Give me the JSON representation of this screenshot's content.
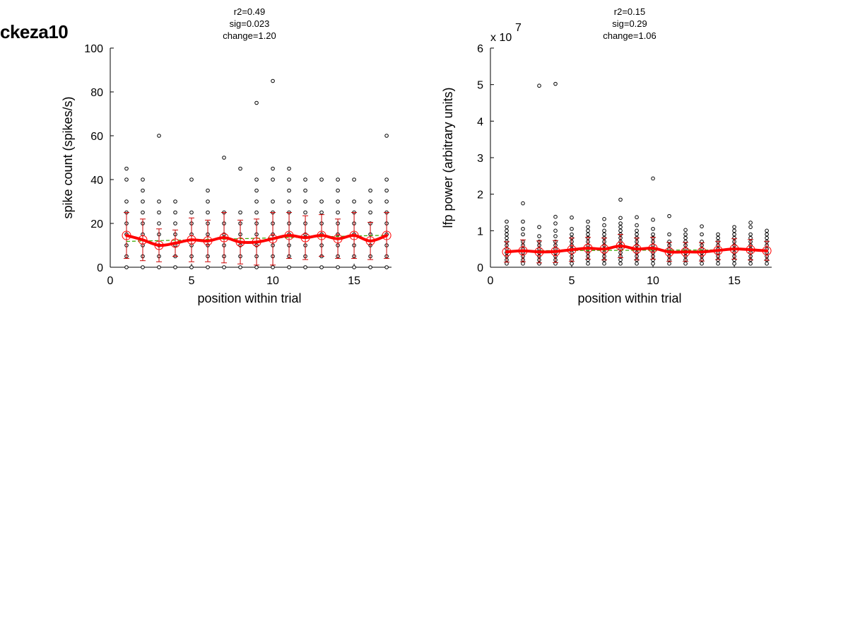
{
  "figure": {
    "title": "ckeza10"
  },
  "chart_data": [
    {
      "type": "scatter",
      "xlabel": "position within trial",
      "ylabel": "spike count (spikes/s)",
      "stats": [
        "r2=0.49",
        "sig=0.023",
        "change=1.20"
      ],
      "xlim": [
        0,
        17.3
      ],
      "ylim": [
        0,
        100
      ],
      "xticks": [
        0,
        5,
        10,
        15
      ],
      "yticks": [
        0,
        20,
        40,
        60,
        80,
        100
      ],
      "exponent_label": "",
      "raw_points": [
        {
          "x": 1,
          "y": [
            0,
            5,
            10,
            15,
            20,
            25,
            30,
            40,
            45
          ]
        },
        {
          "x": 2,
          "y": [
            0,
            5,
            10,
            15,
            20,
            25,
            30,
            35,
            40
          ]
        },
        {
          "x": 3,
          "y": [
            0,
            5,
            10,
            15,
            20,
            25,
            30,
            60
          ]
        },
        {
          "x": 4,
          "y": [
            0,
            5,
            10,
            15,
            20,
            25,
            30
          ]
        },
        {
          "x": 5,
          "y": [
            0,
            5,
            10,
            15,
            20,
            25,
            40
          ]
        },
        {
          "x": 6,
          "y": [
            0,
            5,
            10,
            15,
            20,
            25,
            30,
            35
          ]
        },
        {
          "x": 7,
          "y": [
            0,
            5,
            10,
            15,
            20,
            25,
            50
          ]
        },
        {
          "x": 8,
          "y": [
            0,
            5,
            10,
            15,
            20,
            25,
            45
          ]
        },
        {
          "x": 9,
          "y": [
            0,
            5,
            10,
            15,
            20,
            25,
            30,
            35,
            40,
            75
          ]
        },
        {
          "x": 10,
          "y": [
            0,
            5,
            10,
            15,
            20,
            25,
            30,
            40,
            45,
            85
          ]
        },
        {
          "x": 11,
          "y": [
            0,
            5,
            10,
            15,
            20,
            25,
            30,
            35,
            40,
            45
          ]
        },
        {
          "x": 12,
          "y": [
            0,
            5,
            10,
            15,
            20,
            25,
            30,
            35,
            40
          ]
        },
        {
          "x": 13,
          "y": [
            0,
            5,
            10,
            15,
            20,
            25,
            30,
            40
          ]
        },
        {
          "x": 14,
          "y": [
            0,
            5,
            10,
            15,
            20,
            25,
            30,
            35,
            40
          ]
        },
        {
          "x": 15,
          "y": [
            0,
            5,
            10,
            15,
            20,
            25,
            30,
            40
          ]
        },
        {
          "x": 16,
          "y": [
            0,
            5,
            10,
            15,
            20,
            25,
            30,
            35
          ]
        },
        {
          "x": 17,
          "y": [
            0,
            5,
            10,
            15,
            20,
            25,
            30,
            35,
            40,
            60
          ]
        }
      ],
      "means": [
        14.5,
        12.5,
        10.0,
        11.0,
        12.5,
        12.0,
        13.5,
        11.5,
        11.5,
        13.0,
        14.5,
        13.5,
        14.5,
        13.0,
        14.5,
        12.0,
        14.5
      ],
      "errors": [
        10.5,
        9.5,
        7.5,
        6.0,
        10.0,
        9.5,
        11.5,
        10.0,
        10.5,
        12.0,
        10.5,
        10.0,
        9.5,
        9.0,
        10.5,
        8.5,
        10.5
      ],
      "fit_line": {
        "x": [
          1,
          17
        ],
        "y": [
          11.8,
          14.6
        ]
      },
      "colors": {
        "points": "#000000",
        "mean": "#ff0000",
        "errorbar": "#cc0000",
        "fit": "#33aa00"
      }
    },
    {
      "type": "scatter",
      "xlabel": "position within trial",
      "ylabel": "lfp power (arbitrary units)",
      "stats": [
        "r2=0.15",
        "sig=0.29",
        "change=1.06"
      ],
      "xlim": [
        0,
        17.3
      ],
      "ylim": [
        0,
        6
      ],
      "xticks": [
        0,
        5,
        10,
        15
      ],
      "yticks": [
        0,
        1,
        2,
        3,
        4,
        5,
        6
      ],
      "exponent_label": "x 10",
      "exponent_power": "7",
      "raw_points": [
        {
          "x": 1,
          "y": [
            0.1,
            0.2,
            0.3,
            0.4,
            0.5,
            0.6,
            0.7,
            0.8,
            0.9,
            1.0,
            1.1,
            1.25
          ]
        },
        {
          "x": 2,
          "y": [
            0.1,
            0.2,
            0.3,
            0.4,
            0.5,
            0.6,
            0.7,
            0.9,
            1.05,
            1.25,
            1.75
          ]
        },
        {
          "x": 3,
          "y": [
            0.1,
            0.2,
            0.3,
            0.4,
            0.5,
            0.6,
            0.7,
            0.85,
            1.1,
            4.97
          ]
        },
        {
          "x": 4,
          "y": [
            0.1,
            0.2,
            0.3,
            0.4,
            0.5,
            0.6,
            0.7,
            0.85,
            1.0,
            1.2,
            1.38,
            5.02
          ]
        },
        {
          "x": 5,
          "y": [
            0.1,
            0.2,
            0.3,
            0.4,
            0.5,
            0.6,
            0.7,
            0.8,
            0.9,
            1.05,
            1.36
          ]
        },
        {
          "x": 6,
          "y": [
            0.1,
            0.2,
            0.3,
            0.4,
            0.5,
            0.6,
            0.7,
            0.8,
            0.9,
            1.0,
            1.1,
            1.25
          ]
        },
        {
          "x": 7,
          "y": [
            0.1,
            0.2,
            0.3,
            0.4,
            0.5,
            0.6,
            0.7,
            0.8,
            0.9,
            1.0,
            1.15,
            1.32
          ]
        },
        {
          "x": 8,
          "y": [
            0.1,
            0.2,
            0.3,
            0.4,
            0.5,
            0.6,
            0.7,
            0.8,
            0.9,
            1.0,
            1.1,
            1.2,
            1.35,
            1.85
          ]
        },
        {
          "x": 9,
          "y": [
            0.1,
            0.2,
            0.3,
            0.4,
            0.5,
            0.6,
            0.7,
            0.8,
            0.9,
            1.0,
            1.15,
            1.37
          ]
        },
        {
          "x": 10,
          "y": [
            0.1,
            0.2,
            0.3,
            0.4,
            0.5,
            0.6,
            0.7,
            0.8,
            0.9,
            1.05,
            1.3,
            2.43
          ]
        },
        {
          "x": 11,
          "y": [
            0.1,
            0.2,
            0.3,
            0.4,
            0.5,
            0.6,
            0.7,
            0.9,
            1.4
          ]
        },
        {
          "x": 12,
          "y": [
            0.1,
            0.2,
            0.3,
            0.4,
            0.5,
            0.6,
            0.7,
            0.8,
            0.9,
            1.02
          ]
        },
        {
          "x": 13,
          "y": [
            0.1,
            0.2,
            0.3,
            0.4,
            0.5,
            0.6,
            0.7,
            0.9,
            1.12
          ]
        },
        {
          "x": 14,
          "y": [
            0.1,
            0.2,
            0.3,
            0.4,
            0.5,
            0.6,
            0.7,
            0.8,
            0.9
          ]
        },
        {
          "x": 15,
          "y": [
            0.1,
            0.2,
            0.3,
            0.4,
            0.5,
            0.6,
            0.7,
            0.8,
            0.9,
            1.0,
            1.1
          ]
        },
        {
          "x": 16,
          "y": [
            0.1,
            0.2,
            0.3,
            0.4,
            0.5,
            0.6,
            0.7,
            0.8,
            0.9,
            1.1,
            1.22
          ]
        },
        {
          "x": 17,
          "y": [
            0.1,
            0.2,
            0.3,
            0.4,
            0.5,
            0.6,
            0.7,
            0.8,
            0.9,
            1.0
          ]
        }
      ],
      "means": [
        0.42,
        0.45,
        0.42,
        0.43,
        0.48,
        0.52,
        0.5,
        0.58,
        0.5,
        0.52,
        0.42,
        0.42,
        0.42,
        0.46,
        0.5,
        0.48,
        0.45
      ],
      "errors": [
        0.28,
        0.3,
        0.3,
        0.3,
        0.32,
        0.3,
        0.3,
        0.32,
        0.3,
        0.3,
        0.26,
        0.26,
        0.25,
        0.25,
        0.28,
        0.28,
        0.26
      ],
      "fit_line": {
        "x": [
          1,
          17
        ],
        "y": [
          0.45,
          0.48
        ]
      },
      "colors": {
        "points": "#000000",
        "mean": "#ff0000",
        "errorbar": "#cc0000",
        "fit": "#33aa00"
      }
    }
  ]
}
